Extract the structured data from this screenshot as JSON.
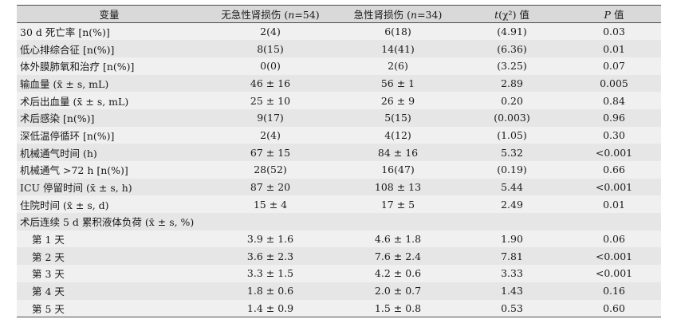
{
  "header": {
    "col_variable": "变量",
    "col_non_aki_prefix": "无急性肾损伤 (",
    "col_non_aki_n": "n",
    "col_non_aki_suffix": "=54)",
    "col_aki_prefix": "急性肾损伤 (",
    "col_aki_n": "n",
    "col_aki_suffix": "=34)",
    "col_stat_t": "t",
    "col_stat_rest": "(χ²) 值",
    "col_p": "P",
    "col_p_suffix": " 值"
  },
  "rows": [
    {
      "label": "30 d 死亡率 [n(%)]",
      "non_aki": "2(4)",
      "aki": "6(18)",
      "stat": "(4.91)",
      "p": "0.03"
    },
    {
      "label": "低心排综合征 [n(%)]",
      "non_aki": "8(15)",
      "aki": "14(41)",
      "stat": "(6.36)",
      "p": "0.01"
    },
    {
      "label": "体外膜肺氧和治疗 [n(%)]",
      "non_aki": "0(0)",
      "aki": "2(6)",
      "stat": "(3.25)",
      "p": "0.07"
    },
    {
      "label": "输血量 (x̄ ± s, mL)",
      "non_aki": "46 ± 16",
      "aki": "56 ± 1",
      "stat": "2.89",
      "p": "0.005"
    },
    {
      "label": "术后出血量 (x̄ ± s, mL)",
      "non_aki": "25 ± 10",
      "aki": "26 ± 9",
      "stat": "0.20",
      "p": "0.84"
    },
    {
      "label": "术后感染 [n(%)]",
      "non_aki": "9(17)",
      "aki": "5(15)",
      "stat": "(0.003)",
      "p": "0.96"
    },
    {
      "label": "深低温停循环 [n(%)]",
      "non_aki": "2(4)",
      "aki": "4(12)",
      "stat": "(1.05)",
      "p": "0.30"
    },
    {
      "label": "机械通气时间 (h)",
      "non_aki": "67 ± 15",
      "aki": "84 ± 16",
      "stat": "5.32",
      "p": "<0.001"
    },
    {
      "label": "机械通气 >72 h [n(%)]",
      "non_aki": "28(52)",
      "aki": "16(47)",
      "stat": "(0.19)",
      "p": "0.66"
    },
    {
      "label": "ICU 停留时间 (x̄ ± s, h)",
      "non_aki": "87 ± 20",
      "aki": "108 ± 13",
      "stat": "5.44",
      "p": "<0.001"
    },
    {
      "label": "住院时间 (x̄ ± s, d)",
      "non_aki": "15 ± 4",
      "aki": "17 ± 5",
      "stat": "2.49",
      "p": "0.01"
    },
    {
      "label": "术后连续 5 d 累积液体负荷 (x̄ ± s, %)",
      "non_aki": "",
      "aki": "",
      "stat": "",
      "p": ""
    },
    {
      "label": "第 1 天",
      "non_aki": "3.9 ± 1.6",
      "aki": "4.6 ± 1.8",
      "stat": "1.90",
      "p": "0.06"
    },
    {
      "label": "第 2 天",
      "non_aki": "3.6 ± 2.3",
      "aki": "7.6 ± 2.4",
      "stat": "7.81",
      "p": "<0.001"
    },
    {
      "label": "第 3 天",
      "non_aki": "3.3 ± 1.5",
      "aki": "4.2 ± 0.6",
      "stat": "3.33",
      "p": "<0.001"
    },
    {
      "label": "第 4 天",
      "non_aki": "1.8 ± 0.6",
      "aki": "2.0 ± 0.7",
      "stat": "1.43",
      "p": "0.16"
    },
    {
      "label": "第 5 天",
      "non_aki": "1.4 ± 0.9",
      "aki": "1.5 ± 0.8",
      "stat": "0.53",
      "p": "0.60"
    }
  ]
}
